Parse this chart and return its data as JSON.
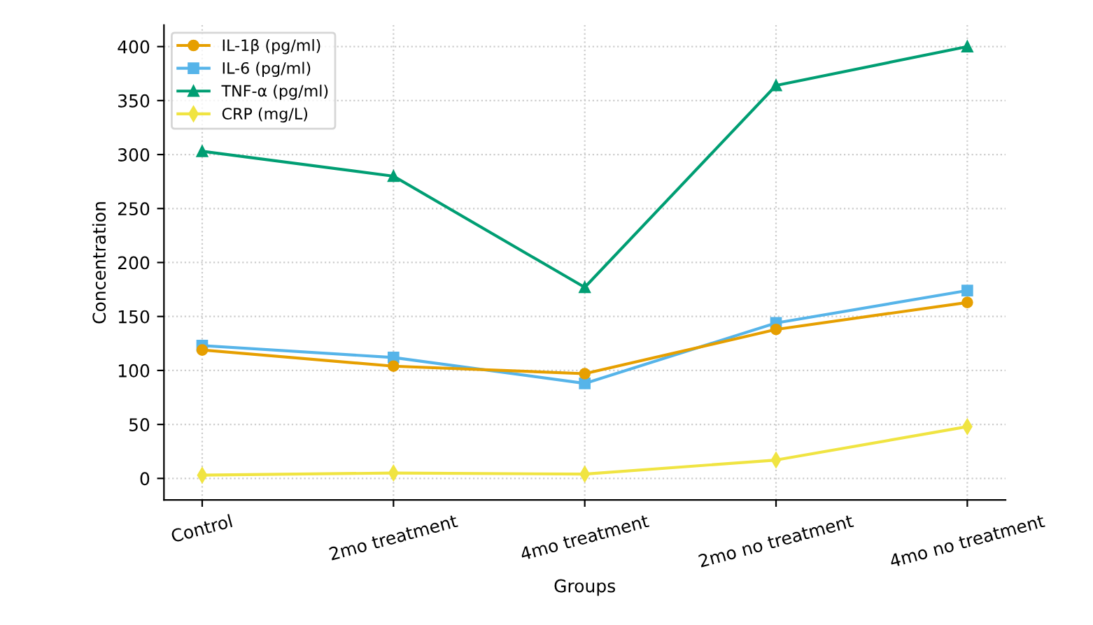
{
  "chart_data": {
    "type": "line",
    "xlabel": "Groups",
    "ylabel": "Concentration",
    "categories": [
      "Control",
      "2mo treatment",
      "4mo treatment",
      "2mo no treatment",
      "4mo no treatment"
    ],
    "series": [
      {
        "name": "IL-1β (pg/ml)",
        "color": "#e69f00",
        "marker": "circle",
        "values": [
          119,
          104,
          97,
          138,
          163
        ]
      },
      {
        "name": "IL-6 (pg/ml)",
        "color": "#56b4e9",
        "marker": "square",
        "values": [
          123,
          112,
          88,
          144,
          174
        ]
      },
      {
        "name": "TNF-α (pg/ml)",
        "color": "#009e73",
        "marker": "triangle",
        "values": [
          303,
          280,
          177,
          364,
          400
        ]
      },
      {
        "name": "CRP (mg/L)",
        "color": "#f0e442",
        "marker": "diamond",
        "values": [
          3,
          5,
          4,
          17,
          48
        ]
      }
    ],
    "ylim": [
      -20,
      420
    ],
    "yticks": [
      0,
      50,
      100,
      150,
      200,
      250,
      300,
      350,
      400
    ],
    "grid": true,
    "legend": "top left",
    "line_style": "solid"
  }
}
